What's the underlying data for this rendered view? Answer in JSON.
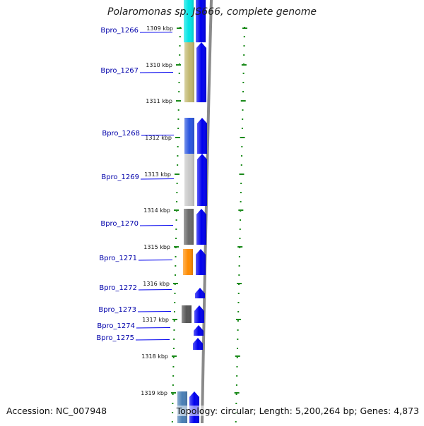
{
  "title": "Polaromonas sp. JS666, complete genome",
  "accession": "Accession: NC_007948",
  "summary": "Topology: circular; Length: 5,200,264 bp; Genes: 4,873",
  "colors": {
    "forward_gene": "#0000ee",
    "gene_label": "#0000aa",
    "tick_green": "#1a8a1a",
    "backbone": "#8a8a8a"
  },
  "ticks": [
    "1309 kbp",
    "1310 kbp",
    "1311 kbp",
    "1312 kbp",
    "1313 kbp",
    "1314 kbp",
    "1315 kbp",
    "1316 kbp",
    "1317 kbp",
    "1318 kbp",
    "1319 kbp"
  ],
  "genes": [
    {
      "label": "Bpro_1266",
      "cog_color": "#00e5e5"
    },
    {
      "label": "Bpro_1267",
      "cog_color": "#c2b870"
    },
    {
      "label": "Bpro_1268",
      "cog_color": "#2a55e0"
    },
    {
      "label": "Bpro_1269",
      "cog_color": "#c8c8c8"
    },
    {
      "label": "Bpro_1270",
      "cog_color": "#6a6a6a"
    },
    {
      "label": "Bpro_1271",
      "cog_color": "#ff8c00"
    },
    {
      "label": "Bpro_1272",
      "cog_color": ""
    },
    {
      "label": "Bpro_1273",
      "cog_color": "#555555"
    },
    {
      "label": "Bpro_1274",
      "cog_color": ""
    },
    {
      "label": "Bpro_1275",
      "cog_color": ""
    },
    {
      "label": "",
      "cog_color": "#4a7fb5"
    }
  ]
}
